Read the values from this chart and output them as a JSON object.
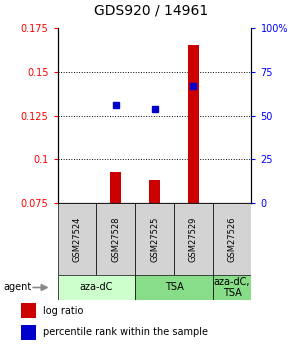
{
  "title": "GDS920 / 14961",
  "samples": [
    "GSM27524",
    "GSM27528",
    "GSM27525",
    "GSM27529",
    "GSM27526"
  ],
  "log_ratio": [
    0.0,
    0.093,
    0.088,
    0.165,
    0.0
  ],
  "percentile_rank": [
    null,
    0.131,
    0.129,
    0.142,
    null
  ],
  "ylim_left": [
    0.075,
    0.175
  ],
  "ylim_right": [
    0,
    100
  ],
  "yticks_left": [
    0.075,
    0.1,
    0.125,
    0.15,
    0.175
  ],
  "yticks_right": [
    0,
    25,
    50,
    75,
    100
  ],
  "groups": [
    {
      "label": "aza-dC",
      "start": 0,
      "end": 1,
      "color": "#ccffcc"
    },
    {
      "label": "TSA",
      "start": 2,
      "end": 3,
      "color": "#88dd88"
    },
    {
      "label": "aza-dC,\nTSA",
      "start": 4,
      "end": 4,
      "color": "#88dd88"
    }
  ],
  "bar_color": "#cc0000",
  "point_color": "#0000cc",
  "baseline": 0.075,
  "title_fontsize": 10,
  "tick_fontsize": 7,
  "sample_fontsize": 6,
  "agent_fontsize": 7,
  "legend_fontsize": 7,
  "background_color": "#ffffff",
  "gridline_color": "#000000",
  "sample_box_color": "#d3d3d3",
  "bar_width": 0.28
}
